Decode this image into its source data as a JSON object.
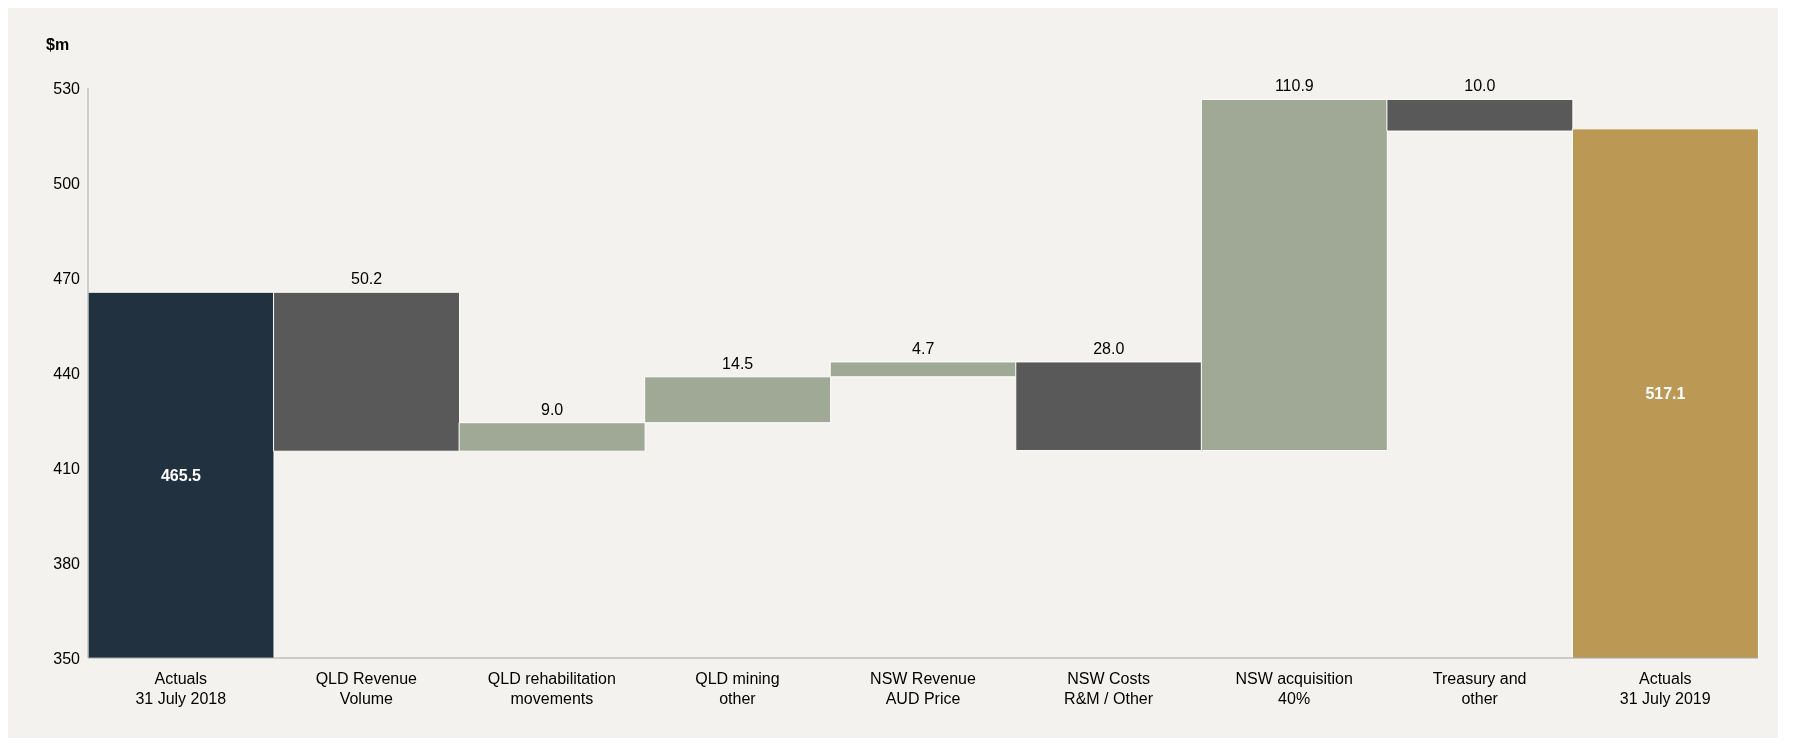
{
  "chart_data": {
    "type": "bar",
    "ylabel": "$m",
    "categories": [
      "Actuals\n31 July 2018",
      "QLD Revenue\nVolume",
      "QLD rehabilitation\nmovements",
      "QLD mining\nother",
      "NSW Revenue\nAUD Price",
      "NSW Costs\nR&M / Other",
      "NSW acquisition\n40%",
      "Treasury and\nother",
      "Actuals\n31 July 2019"
    ],
    "base": [
      null,
      465.5,
      415.3,
      424.3,
      438.8,
      443.5,
      415.5,
      526.4,
      null
    ],
    "values": [
      465.5,
      -50.2,
      9.0,
      14.5,
      4.7,
      -28.0,
      110.9,
      -10.0,
      517.1
    ],
    "value_labels": [
      "465.5",
      "50.2",
      "9.0",
      "14.5",
      "4.7",
      "28.0",
      "110.9",
      "10.0",
      "517.1"
    ],
    "colors": [
      "#22313f",
      "#595959",
      "#a0a996",
      "#a0a996",
      "#a0a996",
      "#595959",
      "#a0a996",
      "#595959",
      "#bb9954"
    ],
    "ylim": [
      350,
      530
    ],
    "yticks": [
      350,
      380,
      410,
      440,
      470,
      500,
      530
    ],
    "grid": false,
    "legend": false
  }
}
